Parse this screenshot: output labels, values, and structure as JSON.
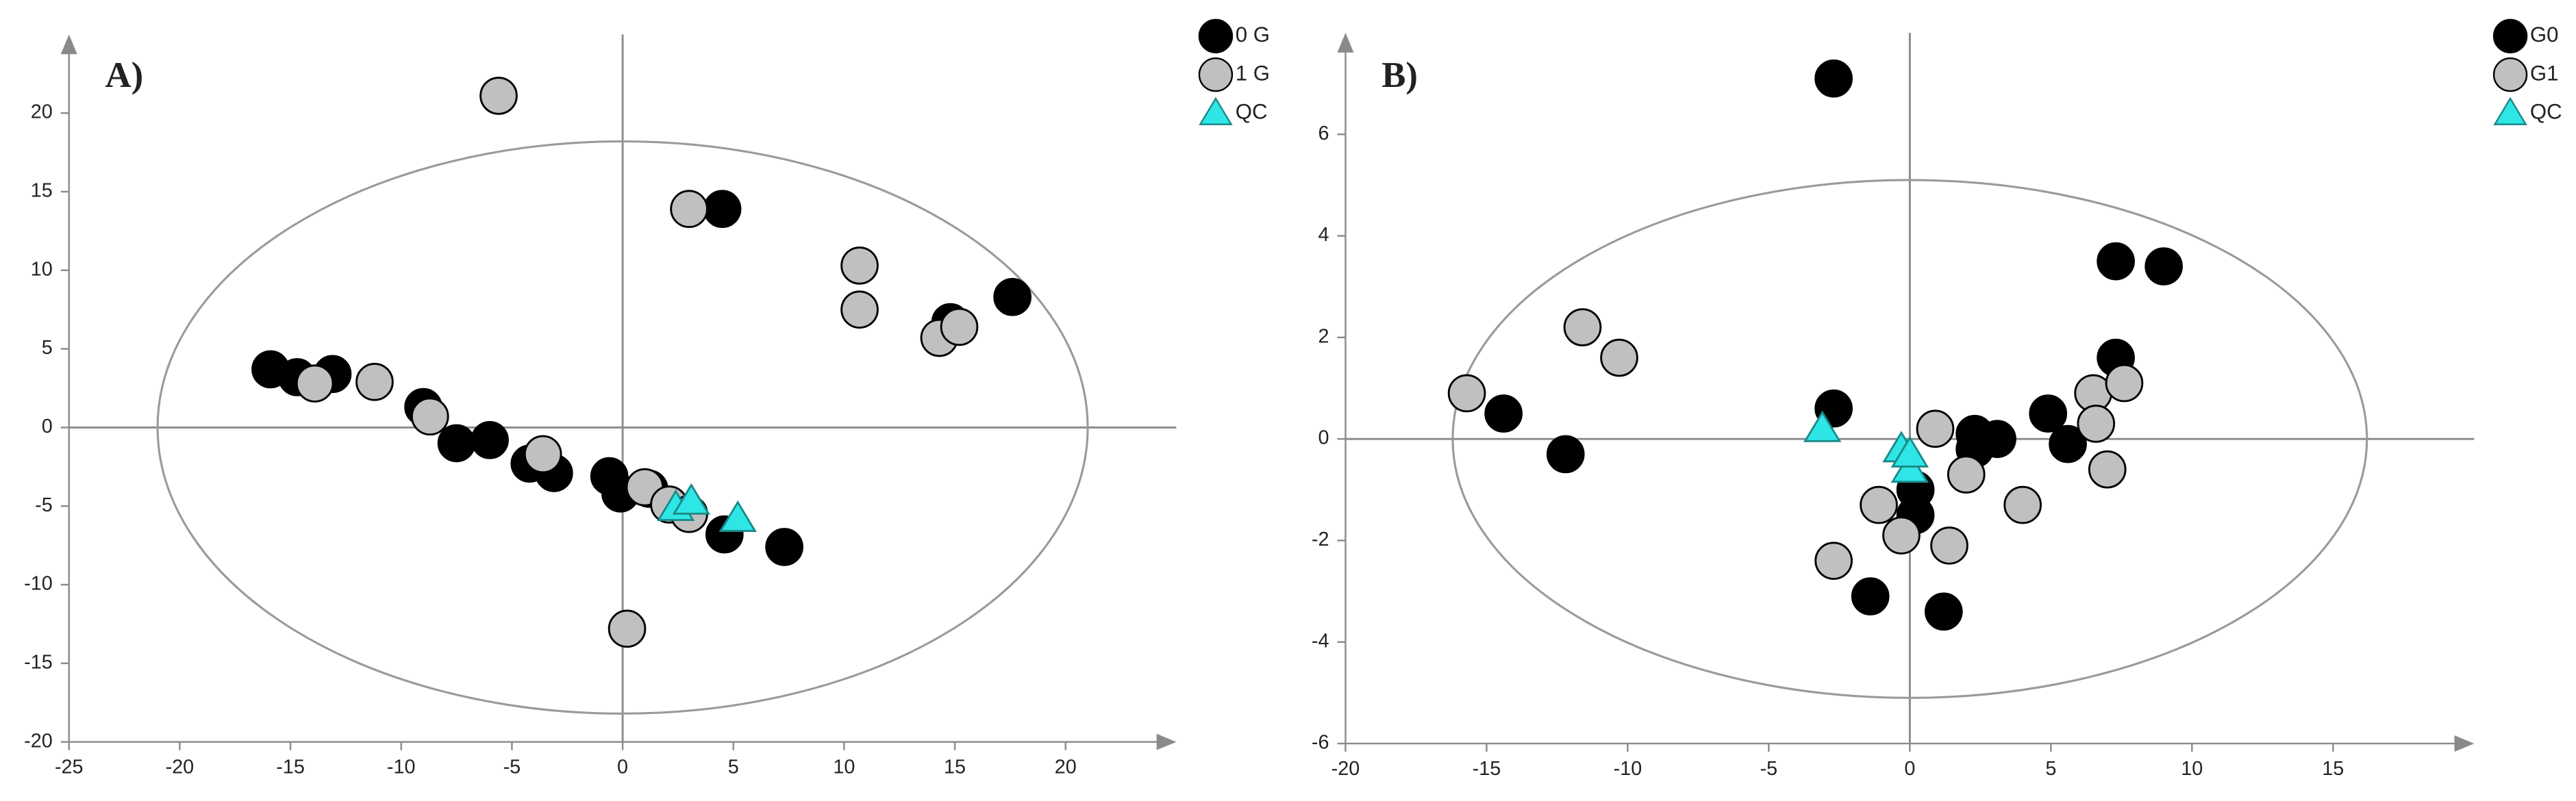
{
  "chart_data": [
    {
      "type": "scatter",
      "panel_label": "A)",
      "xlim": [
        -25,
        25
      ],
      "ylim": [
        -20,
        25
      ],
      "xticks": [
        -25,
        -20,
        -15,
        -10,
        -5,
        0,
        5,
        10,
        15,
        20
      ],
      "yticks": [
        -20,
        -15,
        -10,
        -5,
        0,
        5,
        10,
        15,
        20
      ],
      "ellipse": {
        "rx": 21,
        "ry": 18.2
      },
      "series": [
        {
          "name": "0 G",
          "color": "#000000",
          "marker": "circle",
          "x": [
            -15.9,
            -14.7,
            -13.1,
            -9.0,
            -7.5,
            -6.0,
            -4.2,
            -3.1,
            -0.6,
            -0.1,
            1.2,
            4.5,
            4.6,
            7.3,
            14.8,
            17.6
          ],
          "y": [
            3.7,
            3.2,
            3.4,
            1.3,
            -1.0,
            -0.8,
            -2.3,
            -2.9,
            -3.1,
            -4.2,
            -3.9,
            13.9,
            -6.8,
            -7.6,
            6.7,
            8.3
          ]
        },
        {
          "name": "1 G",
          "color": "#c0c0c0",
          "marker": "circle",
          "x": [
            -5.6,
            3.0,
            10.7,
            10.7,
            14.3,
            15.2,
            -13.9,
            -11.2,
            -8.7,
            -3.6,
            0.2,
            1.0,
            2.1,
            3.0
          ],
          "y": [
            21.1,
            13.9,
            10.3,
            7.5,
            5.7,
            6.4,
            2.8,
            2.9,
            0.7,
            -1.7,
            -12.8,
            -3.8,
            -4.9,
            -5.5
          ]
        },
        {
          "name": "QC",
          "color": "#2ee6e6",
          "marker": "triangle",
          "x": [
            2.4,
            3.1,
            5.2
          ],
          "y": [
            -5.1,
            -4.7,
            -5.8
          ]
        }
      ]
    },
    {
      "type": "scatter",
      "panel_label": "B)",
      "xlim": [
        -20,
        20
      ],
      "ylim": [
        -6,
        8
      ],
      "xticks": [
        -20,
        -15,
        -10,
        -5,
        0,
        5,
        10,
        15
      ],
      "yticks": [
        -6,
        -4,
        -2,
        0,
        2,
        4,
        6
      ],
      "ellipse": {
        "rx": 16.2,
        "ry": 5.1
      },
      "series": [
        {
          "name": "G0",
          "color": "#000000",
          "marker": "circle",
          "x": [
            -2.7,
            -14.4,
            -12.2,
            -2.7,
            -1.4,
            0.2,
            0.2,
            1.2,
            2.3,
            2.3,
            3.1,
            4.9,
            5.6,
            7.3,
            9.0,
            7.3
          ],
          "y": [
            7.1,
            0.5,
            -0.3,
            0.6,
            -3.1,
            -1.0,
            -1.5,
            -3.4,
            0.1,
            -0.2,
            0.0,
            0.5,
            -0.1,
            3.5,
            3.4,
            1.6
          ]
        },
        {
          "name": "G1",
          "color": "#c0c0c0",
          "marker": "circle",
          "x": [
            -15.7,
            -11.6,
            -10.3,
            -2.7,
            -1.1,
            -0.3,
            0.9,
            1.4,
            2.0,
            4.0,
            6.5,
            6.6,
            7.6,
            7.0
          ],
          "y": [
            0.9,
            2.2,
            1.6,
            -2.4,
            -1.3,
            -1.9,
            0.2,
            -2.1,
            -0.7,
            -1.3,
            0.9,
            0.3,
            1.1,
            -0.6
          ]
        },
        {
          "name": "QC",
          "color": "#2ee6e6",
          "marker": "triangle",
          "x": [
            -3.1,
            -0.3,
            0.0,
            0.0
          ],
          "y": [
            0.2,
            -0.2,
            -0.6,
            -0.3
          ]
        }
      ]
    }
  ]
}
